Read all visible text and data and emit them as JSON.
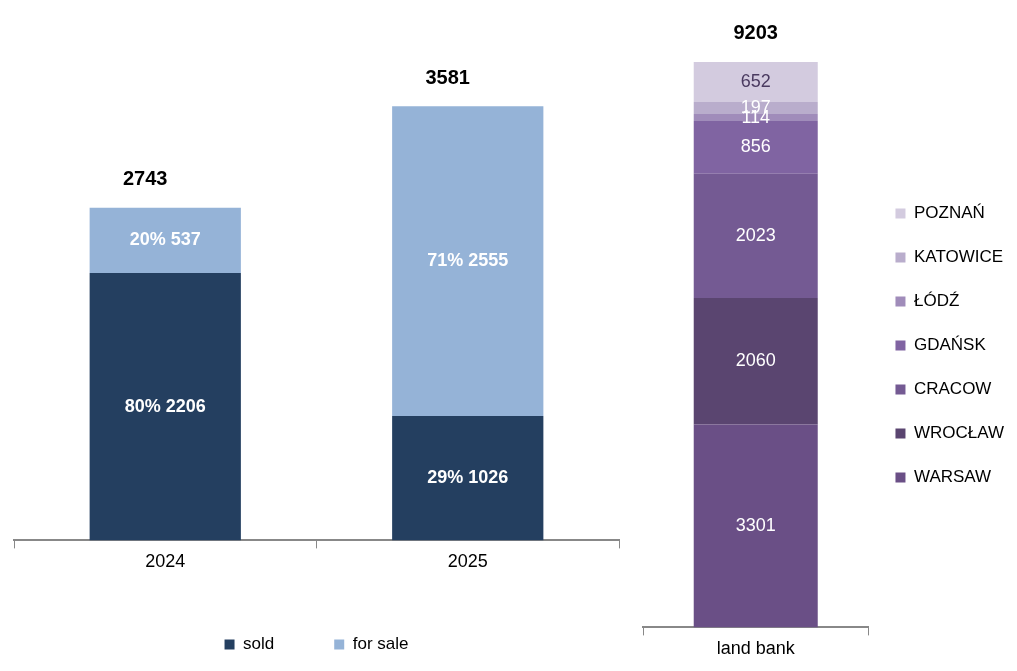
{
  "chart_data": [
    {
      "type": "bar",
      "stacked": true,
      "tick_labels": "x",
      "legend": "bottom",
      "grid": false,
      "categories": [
        "2024",
        "2025"
      ],
      "totals": [
        "2743",
        "3581"
      ],
      "series": [
        {
          "name": "sold",
          "color": "#243f60",
          "values": [
            2206,
            1026
          ],
          "value_labels": [
            "80% 2206",
            "29% 1026"
          ]
        },
        {
          "name": "for sale",
          "color": "#95b3d7",
          "values": [
            537,
            2555
          ],
          "value_labels": [
            "20% 537",
            "71% 2555"
          ]
        }
      ]
    },
    {
      "type": "bar",
      "stacked": true,
      "tick_labels": "x",
      "legend": "right",
      "grid": false,
      "data_labels": true,
      "categories": [
        "land bank"
      ],
      "totals": [
        "9203"
      ],
      "series": [
        {
          "name": "WARSAW",
          "color": "#6a4f86",
          "values": [
            3301
          ]
        },
        {
          "name": "WROCŁAW",
          "color": "#5a4570",
          "values": [
            2060
          ]
        },
        {
          "name": "CRACOW",
          "color": "#745a93",
          "values": [
            2023
          ]
        },
        {
          "name": "GDAŃSK",
          "color": "#8064a2",
          "values": [
            856
          ]
        },
        {
          "name": "ŁÓDŹ",
          "color": "#a08cba",
          "values": [
            114
          ]
        },
        {
          "name": "KATOWICE",
          "color": "#b9adcc",
          "values": [
            197
          ]
        },
        {
          "name": "POZNAŃ",
          "color": "#d3cbdf",
          "values": [
            652
          ]
        }
      ]
    }
  ]
}
